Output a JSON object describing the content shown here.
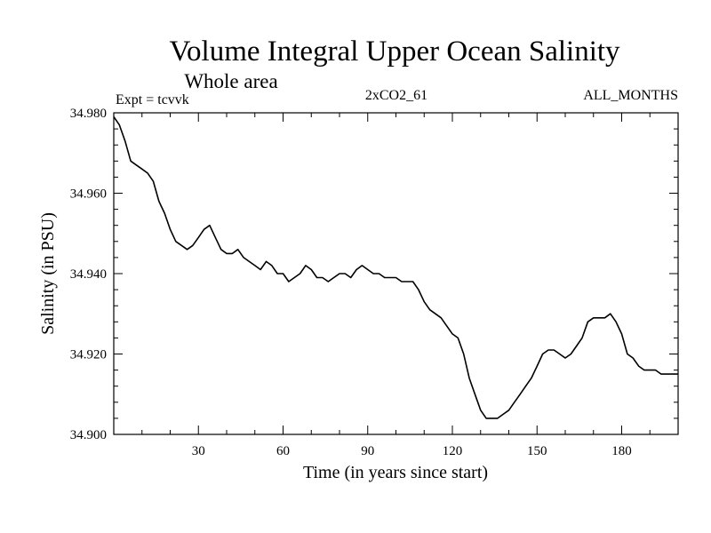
{
  "chart_data": {
    "type": "line",
    "title": "Volume Integral Upper Ocean Salinity",
    "subtitle": "Whole area",
    "annotations": {
      "left": "Expt = tcvvk",
      "center": "2xCO2_61",
      "right": "ALL_MONTHS"
    },
    "xlabel": "Time (in years since start)",
    "ylabel": "Salinity (in PSU)",
    "xlim": [
      0,
      200
    ],
    "ylim": [
      34.9,
      34.98
    ],
    "xticks": [
      30,
      60,
      90,
      120,
      150,
      180
    ],
    "xtick_labels": [
      "30",
      "60",
      "90",
      "120",
      "150",
      "180"
    ],
    "yticks": [
      34.9,
      34.92,
      34.94,
      34.96,
      34.98
    ],
    "ytick_labels": [
      "34.900",
      "34.920",
      "34.940",
      "34.960",
      "34.980"
    ],
    "grid": false,
    "series": [
      {
        "color": "#000000",
        "x": [
          0,
          2,
          4,
          6,
          8,
          10,
          12,
          14,
          16,
          18,
          20,
          22,
          24,
          26,
          28,
          30,
          32,
          34,
          36,
          38,
          40,
          42,
          44,
          46,
          48,
          50,
          52,
          54,
          56,
          58,
          60,
          62,
          64,
          66,
          68,
          70,
          72,
          74,
          76,
          78,
          80,
          82,
          84,
          86,
          88,
          90,
          92,
          94,
          96,
          98,
          100,
          102,
          104,
          106,
          108,
          110,
          112,
          114,
          116,
          118,
          120,
          122,
          124,
          126,
          128,
          130,
          132,
          134,
          136,
          138,
          140,
          142,
          144,
          146,
          148,
          150,
          152,
          154,
          156,
          158,
          160,
          162,
          164,
          166,
          168,
          170,
          172,
          174,
          176,
          178,
          180,
          182,
          184,
          186,
          188,
          190,
          192,
          194,
          196,
          198,
          200
        ],
        "y": [
          34.979,
          34.977,
          34.973,
          34.968,
          34.967,
          34.966,
          34.965,
          34.963,
          34.958,
          34.955,
          34.951,
          34.948,
          34.947,
          34.946,
          34.947,
          34.949,
          34.951,
          34.952,
          34.949,
          34.946,
          34.945,
          34.945,
          34.946,
          34.944,
          34.943,
          34.942,
          34.941,
          34.943,
          34.942,
          34.94,
          34.94,
          34.938,
          34.939,
          34.94,
          34.942,
          34.941,
          34.939,
          34.939,
          34.938,
          34.939,
          34.94,
          34.94,
          34.939,
          34.941,
          34.942,
          34.941,
          34.94,
          34.94,
          34.939,
          34.939,
          34.939,
          34.938,
          34.938,
          34.938,
          34.936,
          34.933,
          34.931,
          34.93,
          34.929,
          34.927,
          34.925,
          34.924,
          34.92,
          34.914,
          34.91,
          34.906,
          34.904,
          34.904,
          34.904,
          34.905,
          34.906,
          34.908,
          34.91,
          34.912,
          34.914,
          34.917,
          34.92,
          34.921,
          34.921,
          34.92,
          34.919,
          34.92,
          34.922,
          34.924,
          34.928,
          34.929,
          34.929,
          34.929,
          34.93,
          34.928,
          34.925,
          34.92,
          34.919,
          34.917,
          34.916,
          34.916,
          34.916,
          34.915,
          34.915,
          34.915,
          34.915
        ]
      }
    ]
  }
}
